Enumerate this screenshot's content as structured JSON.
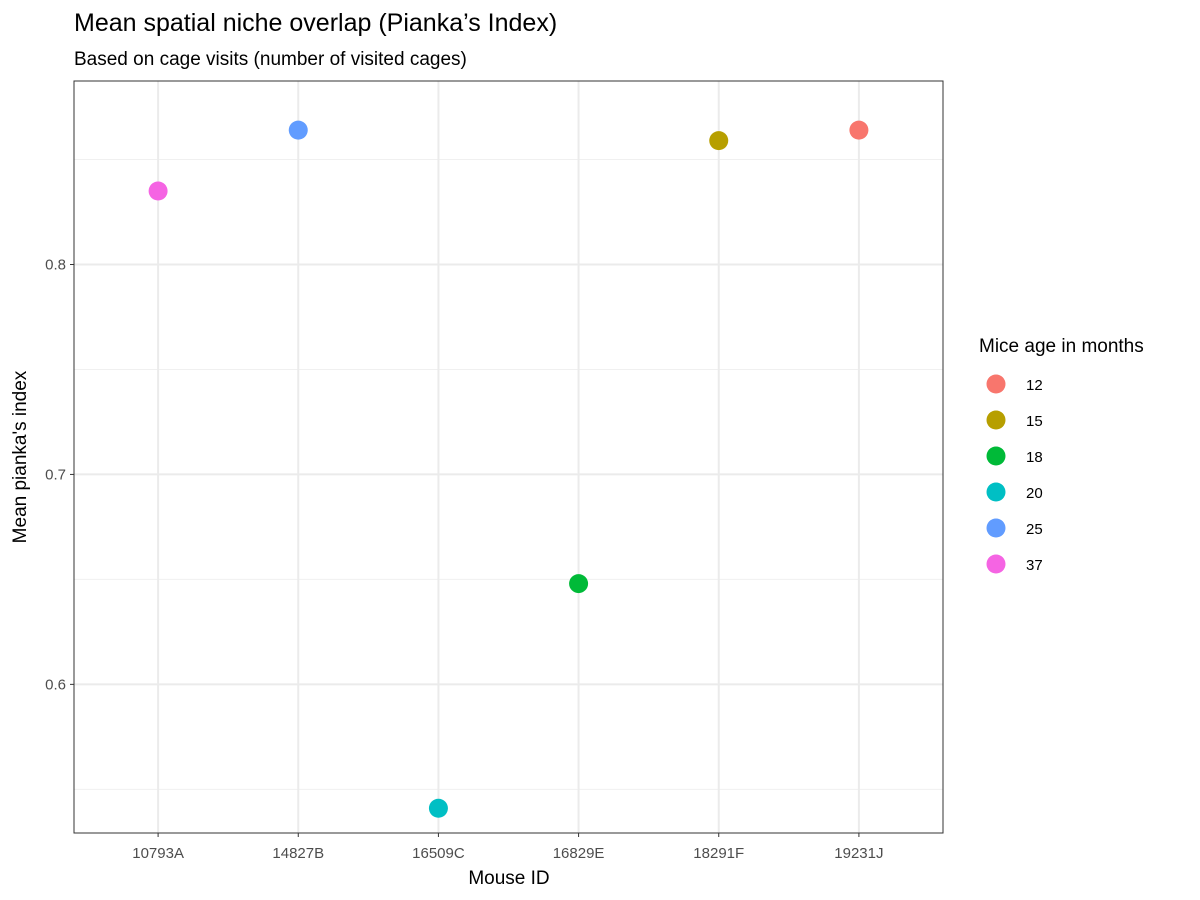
{
  "chart_data": {
    "type": "scatter",
    "title": "Mean spatial niche overlap (Pianka’s Index)",
    "subtitle": "Based on cage visits (number of visited cages)",
    "xlabel": "Mouse ID",
    "ylabel": "Mean pianka's index",
    "categories": [
      "10793A",
      "14827B",
      "16509C",
      "16829E",
      "18291F",
      "19231J"
    ],
    "y_ticks": [
      0.6,
      0.7,
      0.8
    ],
    "y_tick_labels": [
      "0.6",
      "0.7",
      "0.8"
    ],
    "ylim": [
      0.5292,
      0.8874
    ],
    "grid": true,
    "legend_title": "Mice age in months",
    "legend_position": "right",
    "points": [
      {
        "x": "10793A",
        "y": 0.835,
        "age": "37"
      },
      {
        "x": "14827B",
        "y": 0.864,
        "age": "25"
      },
      {
        "x": "16509C",
        "y": 0.541,
        "age": "20"
      },
      {
        "x": "16829E",
        "y": 0.648,
        "age": "18"
      },
      {
        "x": "18291F",
        "y": 0.859,
        "age": "15"
      },
      {
        "x": "19231J",
        "y": 0.864,
        "age": "12"
      }
    ],
    "legend": [
      {
        "label": "12",
        "color": "#F8766D"
      },
      {
        "label": "15",
        "color": "#B79F00"
      },
      {
        "label": "18",
        "color": "#00BA38"
      },
      {
        "label": "20",
        "color": "#00BFC4"
      },
      {
        "label": "25",
        "color": "#619CFF"
      },
      {
        "label": "37",
        "color": "#F564E3"
      }
    ]
  }
}
